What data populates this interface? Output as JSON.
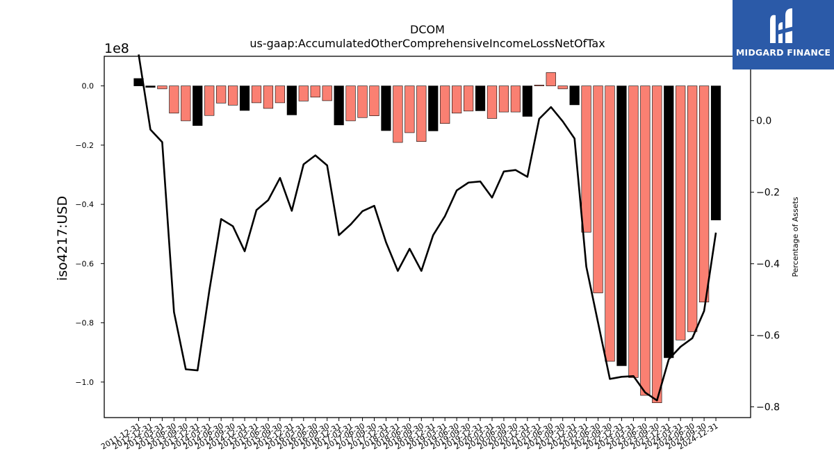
{
  "chart_data": {
    "type": "bar",
    "title": "DCOM",
    "subtitle": "us-gaap:AccumulatedOtherComprehensiveIncomeLossNetOfTax",
    "ylabel": "iso4217:USD",
    "y2label": "Percentage of Assets",
    "y_offset_label": "1e8",
    "ylim": [
      -112000000,
      10000000
    ],
    "y2lim": [
      -0.83,
      0.18
    ],
    "y_ticks": [
      0,
      -20000000,
      -40000000,
      -60000000,
      -80000000,
      -100000000
    ],
    "y_tick_labels": [
      "0.0",
      "−0.2",
      "−0.4",
      "−0.6",
      "−0.8",
      "−1.0"
    ],
    "y2_ticks": [
      0.0,
      -0.2,
      -0.4,
      -0.6,
      -0.8
    ],
    "y2_tick_labels": [
      "0.0",
      "−0.2",
      "−0.4",
      "−0.6",
      "−0.8"
    ],
    "categories": [
      "2011-12-31",
      "2012-12-31",
      "2013-03-31",
      "2013-06-30",
      "2013-09-30",
      "2013-12-31",
      "2014-03-31",
      "2014-06-30",
      "2014-09-30",
      "2014-12-31",
      "2015-03-31",
      "2015-06-30",
      "2015-09-30",
      "2015-12-31",
      "2016-03-31",
      "2016-06-30",
      "2016-09-30",
      "2016-12-31",
      "2017-03-31",
      "2017-06-30",
      "2017-09-30",
      "2017-12-31",
      "2018-03-31",
      "2018-06-30",
      "2018-09-30",
      "2018-12-31",
      "2019-03-31",
      "2019-06-30",
      "2019-09-30",
      "2019-12-31",
      "2020-03-31",
      "2020-06-30",
      "2020-09-30",
      "2020-12-31",
      "2021-03-31",
      "2021-06-30",
      "2021-09-30",
      "2021-12-31",
      "2022-03-31",
      "2022-06-30",
      "2022-09-30",
      "2022-12-31",
      "2023-03-31",
      "2023-06-30",
      "2023-09-30",
      "2023-12-31",
      "2024-03-31",
      "2024-06-30",
      "2024-09-30",
      "2024-12-31"
    ],
    "series": [
      {
        "type": "bar",
        "values": [
          2500000,
          -500000,
          -1000000,
          -9200000,
          -11800000,
          -13400000,
          -10000000,
          -5800000,
          -6500000,
          -8300000,
          -5700000,
          -7600000,
          -5700000,
          -9800000,
          -5100000,
          -3800000,
          -5000000,
          -13200000,
          -11800000,
          -10700000,
          -10100000,
          -15100000,
          -19100000,
          -15800000,
          -18800000,
          -15200000,
          -12700000,
          -9200000,
          -8500000,
          -8400000,
          -11000000,
          -8800000,
          -8800000,
          -10300000,
          300000,
          4500000,
          -1000000,
          -6400000,
          -49400000,
          -69900000,
          -93000000,
          -94500000,
          -98500000,
          -104500000,
          -107000000,
          -91800000,
          -85800000,
          -83000000,
          -73000000,
          -45300000
        ],
        "colors": [
          "#000000",
          "#000000",
          "#fa8072",
          "#fa8072",
          "#fa8072",
          "#000000",
          "#fa8072",
          "#fa8072",
          "#fa8072",
          "#000000",
          "#fa8072",
          "#fa8072",
          "#fa8072",
          "#000000",
          "#fa8072",
          "#fa8072",
          "#fa8072",
          "#000000",
          "#fa8072",
          "#fa8072",
          "#fa8072",
          "#000000",
          "#fa8072",
          "#fa8072",
          "#fa8072",
          "#000000",
          "#fa8072",
          "#fa8072",
          "#fa8072",
          "#000000",
          "#fa8072",
          "#fa8072",
          "#fa8072",
          "#000000",
          "#fa8072",
          "#fa8072",
          "#fa8072",
          "#000000",
          "#fa8072",
          "#fa8072",
          "#fa8072",
          "#000000",
          "#fa8072",
          "#fa8072",
          "#fa8072",
          "#000000",
          "#fa8072",
          "#fa8072",
          "#fa8072",
          "#000000"
        ]
      },
      {
        "type": "line",
        "axis": "right",
        "color": "#000000",
        "values": [
          0.185,
          -0.025,
          -0.06,
          -0.535,
          -0.695,
          -0.698,
          -0.475,
          -0.275,
          -0.295,
          -0.365,
          -0.25,
          -0.222,
          -0.16,
          -0.252,
          -0.122,
          -0.097,
          -0.125,
          -0.32,
          -0.29,
          -0.253,
          -0.238,
          -0.34,
          -0.42,
          -0.358,
          -0.42,
          -0.32,
          -0.267,
          -0.195,
          -0.173,
          -0.17,
          -0.215,
          -0.142,
          -0.138,
          -0.157,
          0.005,
          0.038,
          -0.002,
          -0.05,
          -0.408,
          -0.565,
          -0.722,
          -0.716,
          -0.714,
          -0.76,
          -0.782,
          -0.667,
          -0.632,
          -0.608,
          -0.532,
          -0.313
        ]
      }
    ]
  },
  "logo": {
    "text": "MIDGARD FINANCE",
    "icon": "midgard-logo-icon",
    "bg_color": "#2b5aa8"
  }
}
